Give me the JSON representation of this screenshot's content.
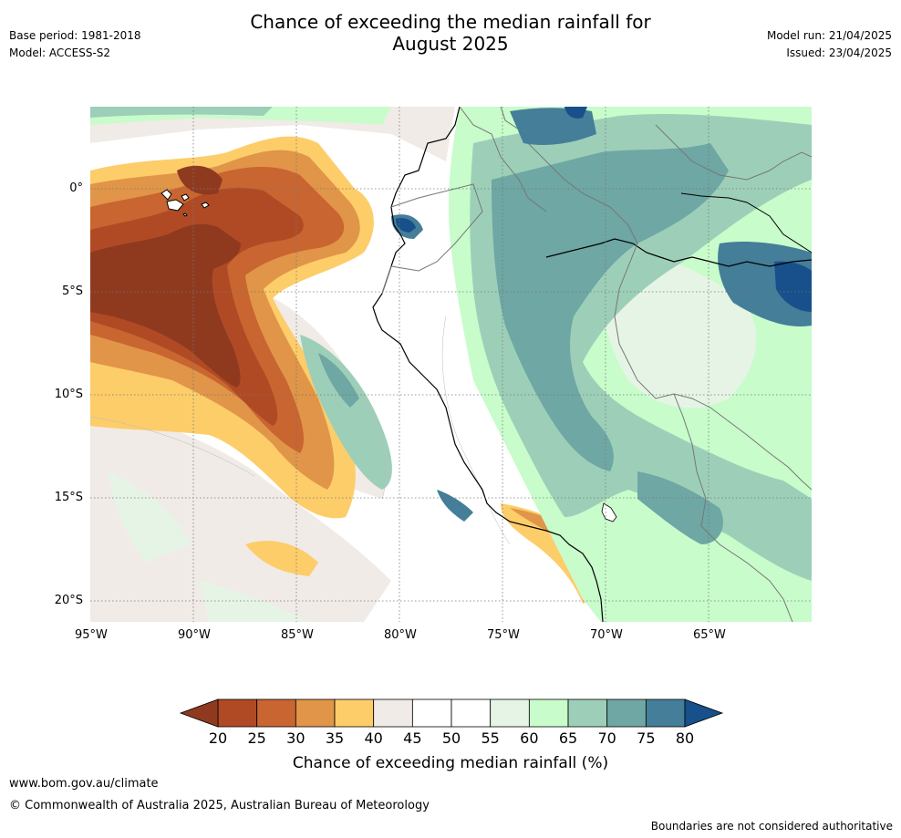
{
  "header": {
    "title_line1": "Chance of exceeding the median rainfall for",
    "title_line2": "August 2025",
    "base_period": "Base period: 1981-2018",
    "model": "Model: ACCESS-S2",
    "model_run": "Model run: 21/04/2025",
    "issued": "Issued: 23/04/2025"
  },
  "map": {
    "lon_labels": [
      "95°W",
      "90°W",
      "85°W",
      "80°W",
      "75°W",
      "70°W",
      "65°W"
    ],
    "lat_labels": [
      "0°",
      "5°S",
      "10°S",
      "15°S",
      "20°S"
    ],
    "colors": {
      "c20": "#8f3a1f",
      "c25": "#b04a25",
      "c30": "#c96530",
      "c35": "#e09548",
      "c40": "#fdcd6a",
      "c45": "#f0ebe6",
      "c50": "#ffffff",
      "c55": "#ffffff",
      "c60": "#e6f4e6",
      "c65": "#c8fccb",
      "c70": "#9dcfb8",
      "c75": "#6ea7a4",
      "c80": "#447e99",
      "c85": "#17508a"
    }
  },
  "colorbar": {
    "ticks": [
      "20",
      "25",
      "30",
      "35",
      "40",
      "45",
      "50",
      "55",
      "60",
      "65",
      "70",
      "75",
      "80"
    ],
    "colors": [
      "#b04a25",
      "#c96530",
      "#e09548",
      "#fdcd6a",
      "#f0ebe6",
      "#ffffff",
      "#ffffff",
      "#e6f4e6",
      "#c8fccb",
      "#9dcfb8",
      "#6ea7a4",
      "#447e99"
    ],
    "low_color": "#8f3a1f",
    "high_color": "#17508a",
    "title": "Chance of exceeding median rainfall (%)"
  },
  "footer": {
    "website": "www.bom.gov.au/climate",
    "copyright": "© Commonwealth of Australia 2025, Australian Bureau of Meteorology",
    "disclaimer": "Boundaries are not considered authoritative"
  }
}
